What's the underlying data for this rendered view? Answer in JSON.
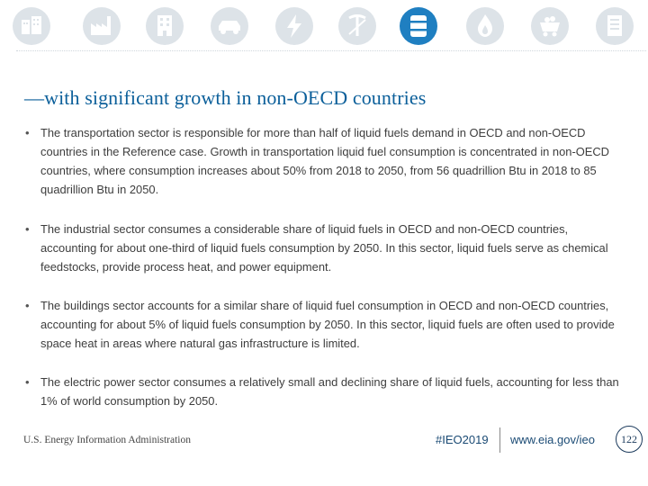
{
  "colors": {
    "icon_inactive": "#dde3e8",
    "icon_active": "#1f7fc1",
    "title": "#0b5f9a",
    "body_text": "#3d3d3d"
  },
  "icons": [
    {
      "name": "buildings-icon",
      "active": false
    },
    {
      "name": "factory-icon",
      "active": false
    },
    {
      "name": "office-building-icon",
      "active": false
    },
    {
      "name": "car-icon",
      "active": false
    },
    {
      "name": "lightning-icon",
      "active": false
    },
    {
      "name": "mining-tools-icon",
      "active": false
    },
    {
      "name": "oil-barrel-icon",
      "active": true
    },
    {
      "name": "flame-icon",
      "active": false
    },
    {
      "name": "coal-cart-icon",
      "active": false
    },
    {
      "name": "document-icon",
      "active": false
    }
  ],
  "title": "—with significant growth in non-OECD countries",
  "bullets": [
    "The transportation sector is responsible for more than half of liquid fuels demand in OECD and non-OECD countries in the Reference case. Growth in transportation liquid fuel consumption is concentrated in non-OECD countries, where consumption increases about 50% from 2018 to 2050, from 56 quadrillion Btu in 2018 to 85 quadrillion Btu in 2050.",
    "The industrial sector consumes a considerable share of liquid fuels in OECD and non-OECD countries, accounting for about one-third of liquid fuels consumption by 2050. In this sector, liquid fuels serve as chemical feedstocks, provide process heat, and power equipment.",
    "The buildings sector accounts for a similar share of liquid fuel consumption in OECD and non-OECD countries, accounting for about 5% of liquid fuels consumption by 2050. In this sector, liquid fuels are often used to provide space heat in areas where natural gas infrastructure is limited.",
    "The electric power sector consumes a relatively small and declining share of liquid fuels, accounting for less than 1% of world consumption by 2050."
  ],
  "bullet_marker": "•",
  "footer": {
    "org": "U.S. Energy Information Administration",
    "hashtag": "#IEO2019",
    "url": "www.eia.gov/ieo",
    "page": "122"
  }
}
